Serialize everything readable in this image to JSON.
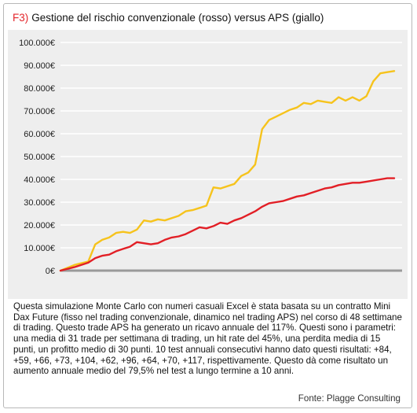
{
  "figure": {
    "label": "F3)",
    "title": "Gestione del rischio convenzionale (rosso) versus APS (giallo)"
  },
  "caption": "Questa simulazione Monte Carlo con numeri casuali Excel è stata basata su un contratto Mini Dax Future (fisso nel trading convenzionale, dinamico nel trading APS) nel corso di 48 settimane di trading. Questo trade APS ha generato un ricavo annuale del 117%. Questi sono i parametri: una media di 31 trade per settimana di trading, un hit rate del 45%, una perdita media di 15 punti, un profitto medio di 30 punti. 10 test annuali consecutivi hanno dato questi risultati: +84, +59, +66, +73, +104, +62, +96, +64, +70, +117, rispettiva­mente. Questo dà come risultato un aumento annuale medio del 79,5% nel test a lungo termine a 10 anni.",
  "source": "Fonte: Plagge Consulting",
  "chart_data": {
    "type": "line",
    "title": "",
    "xlabel": "",
    "ylabel": "",
    "x_axis_labels": false,
    "ylim": [
      0,
      100000
    ],
    "yticks": [
      0,
      10000,
      20000,
      30000,
      40000,
      50000,
      60000,
      70000,
      80000,
      90000,
      100000
    ],
    "ytick_labels": [
      "0€",
      "10.000€",
      "20.000€",
      "30.000€",
      "40.000€",
      "50.000€",
      "60.000€",
      "70.000€",
      "80.000€",
      "90.000€",
      "100.000€"
    ],
    "grid": "horizontal",
    "background": "#eeeeee",
    "series": [
      {
        "color": "#f6c31c",
        "x": [
          0,
          2,
          4,
          5,
          6,
          7,
          8,
          9,
          10,
          11,
          12,
          13,
          14,
          15,
          17,
          18,
          19,
          20,
          21,
          22,
          23,
          25,
          26,
          27,
          28,
          29,
          30,
          31,
          33,
          34,
          35,
          36,
          37,
          38,
          39,
          40,
          41,
          42,
          43,
          44,
          45,
          46,
          47,
          48
        ],
        "y": [
          0,
          2500,
          4000,
          11500,
          13500,
          14500,
          16500,
          17000,
          16500,
          18000,
          22000,
          21500,
          22500,
          22000,
          24000,
          26000,
          26500,
          27500,
          28500,
          36500,
          36000,
          38000,
          41500,
          43000,
          46500,
          62000,
          66000,
          67500,
          70500,
          71500,
          73500,
          73000,
          74500,
          74000,
          73500,
          76000,
          74500,
          76000,
          74500,
          76500,
          83000,
          86500,
          87000,
          87500
        ]
      },
      {
        "color": "#e21f26",
        "x": [
          0,
          2,
          4,
          5,
          6,
          7,
          8,
          9,
          10,
          11,
          12,
          13,
          14,
          15,
          16,
          17,
          18,
          19,
          20,
          21,
          22,
          23,
          24,
          25,
          26,
          27,
          28,
          29,
          30,
          31,
          32,
          33,
          34,
          35,
          36,
          37,
          38,
          39,
          40,
          41,
          42,
          43,
          44,
          45,
          46,
          47,
          48
        ],
        "y": [
          0,
          1500,
          3500,
          5500,
          6500,
          7000,
          8500,
          9500,
          10500,
          12500,
          12000,
          11500,
          12000,
          13500,
          14500,
          15000,
          16000,
          17500,
          19000,
          18500,
          19500,
          21000,
          20500,
          22000,
          23000,
          24500,
          26000,
          28000,
          29500,
          30000,
          30500,
          31500,
          32500,
          33000,
          34000,
          35000,
          36000,
          36500,
          37500,
          38000,
          38500,
          38500,
          39000,
          39500,
          40000,
          40500,
          40500
        ]
      }
    ]
  }
}
